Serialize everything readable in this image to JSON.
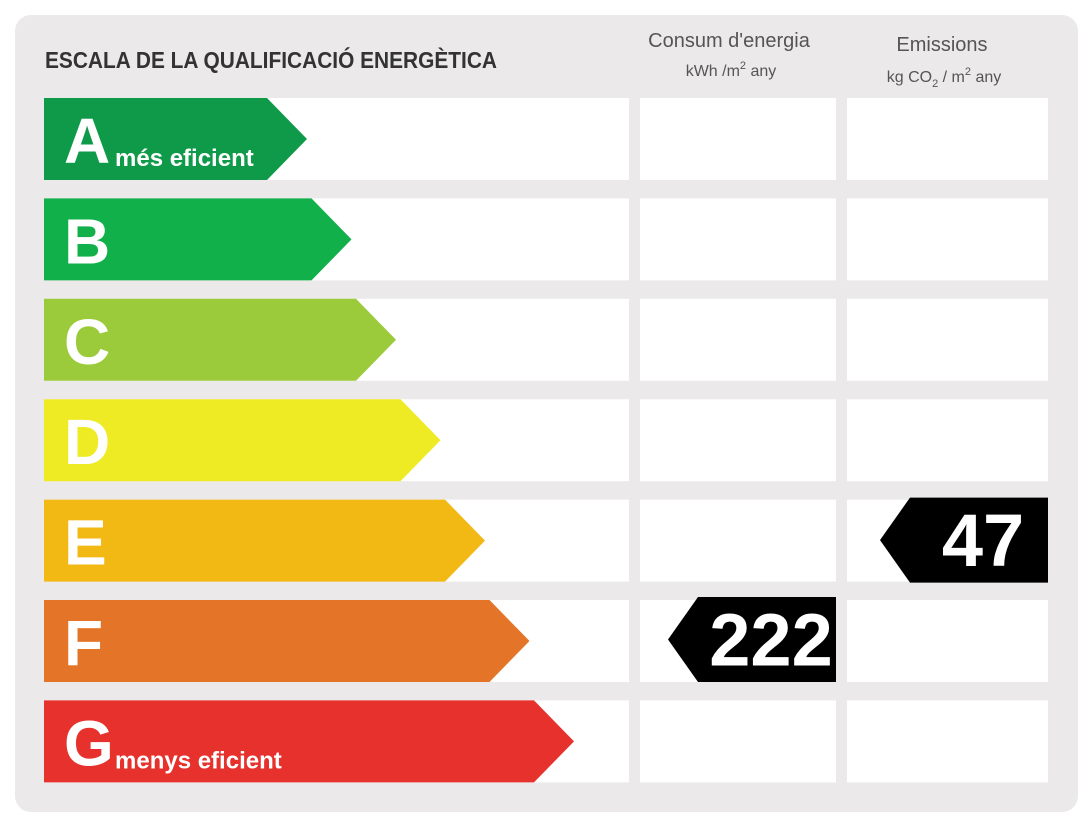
{
  "header": {
    "title": "ESCALA DE LA QUALIFICACIÓ ENERGÈTICA"
  },
  "columns": {
    "consumption": {
      "title": "Consum d'energia",
      "unit": [
        "kWh /m",
        "2",
        " any"
      ]
    },
    "emissions": {
      "title": "Emissions",
      "unit": [
        "kg CO",
        "2",
        " / m",
        "2",
        " any"
      ]
    }
  },
  "rows": [
    {
      "letter": "A",
      "label": "més eficient",
      "color": "#0f9a4a"
    },
    {
      "letter": "B",
      "color": "#12b04a"
    },
    {
      "letter": "C",
      "color": "#9bcb3b"
    },
    {
      "letter": "D",
      "color": "#eeea24"
    },
    {
      "letter": "E",
      "color": "#f2b814",
      "emissions": 47
    },
    {
      "letter": "F",
      "color": "#e47528",
      "consumption": 222
    },
    {
      "letter": "G",
      "label": "menys eficient",
      "color": "#e6312c"
    }
  ]
}
